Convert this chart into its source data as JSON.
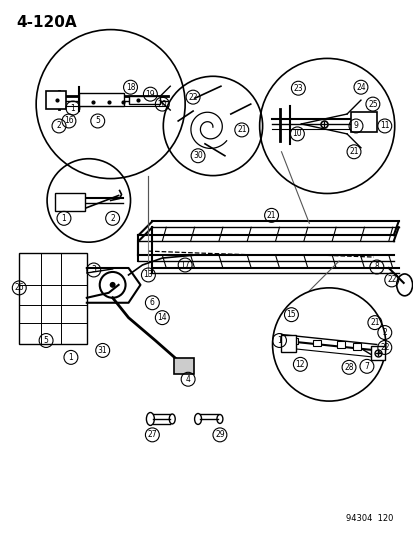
{
  "title": "4-120A",
  "footer": "94304  120",
  "bg_color": "#ffffff",
  "line_color": "#000000",
  "fig_width": 4.14,
  "fig_height": 5.33,
  "dpi": 100
}
